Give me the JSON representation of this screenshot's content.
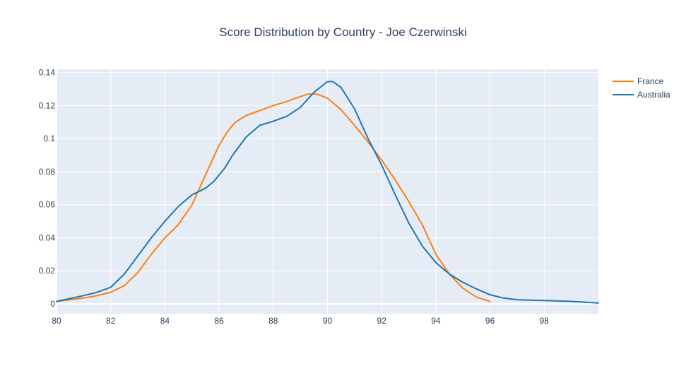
{
  "chart_data": {
    "type": "line",
    "title": "Score Distribution by Country - Joe Czerwinski",
    "xlabel": "",
    "ylabel": "",
    "xlim": [
      80,
      100
    ],
    "ylim": [
      -0.006,
      0.142
    ],
    "x_ticks": [
      80,
      82,
      84,
      86,
      88,
      90,
      92,
      94,
      96,
      98
    ],
    "x_tick_labels": [
      "80",
      "82",
      "84",
      "86",
      "88",
      "90",
      "92",
      "94",
      "96",
      "98"
    ],
    "y_ticks": [
      0,
      0.02,
      0.04,
      0.06,
      0.08,
      0.1,
      0.12,
      0.14
    ],
    "y_tick_labels": [
      "0",
      "0.02",
      "0.04",
      "0.06",
      "0.08",
      "0.1",
      "0.12",
      "0.14"
    ],
    "grid": true,
    "legend_position": "top-right",
    "plot_bgcolor": "#e5ecf6",
    "series": [
      {
        "name": "France",
        "color": "#ff7f0e",
        "x": [
          80,
          81,
          81.5,
          82,
          82.5,
          83,
          83.5,
          84,
          84.5,
          85,
          85.5,
          86,
          86.3,
          86.6,
          87,
          87.5,
          88,
          88.5,
          89,
          89.3,
          89.6,
          90,
          90.5,
          91,
          91.5,
          92,
          92.5,
          93,
          93.5,
          94,
          94.5,
          95,
          95.5,
          96
        ],
        "y": [
          0.0015,
          0.0035,
          0.005,
          0.007,
          0.011,
          0.019,
          0.03,
          0.04,
          0.048,
          0.06,
          0.078,
          0.096,
          0.104,
          0.11,
          0.114,
          0.117,
          0.12,
          0.1225,
          0.1255,
          0.127,
          0.127,
          0.1245,
          0.1175,
          0.108,
          0.098,
          0.087,
          0.075,
          0.062,
          0.048,
          0.03,
          0.018,
          0.0095,
          0.004,
          0.0015
        ]
      },
      {
        "name": "Australia",
        "color": "#1f77b4",
        "x": [
          80,
          81,
          81.5,
          82,
          82.5,
          83,
          83.5,
          84,
          84.5,
          85,
          85.5,
          85.8,
          86.2,
          86.5,
          87,
          87.5,
          88,
          88.5,
          89,
          89.5,
          90,
          90.2,
          90.5,
          91,
          91.5,
          92,
          92.5,
          93,
          93.5,
          94,
          94.5,
          95,
          95.5,
          96,
          96.5,
          97,
          98,
          99,
          100
        ],
        "y": [
          0.0015,
          0.005,
          0.007,
          0.01,
          0.018,
          0.029,
          0.04,
          0.05,
          0.059,
          0.066,
          0.07,
          0.074,
          0.082,
          0.09,
          0.101,
          0.108,
          0.1105,
          0.1135,
          0.119,
          0.128,
          0.1345,
          0.1345,
          0.131,
          0.118,
          0.1,
          0.084,
          0.066,
          0.049,
          0.035,
          0.025,
          0.018,
          0.013,
          0.009,
          0.0055,
          0.0035,
          0.0025,
          0.002,
          0.0015,
          0.0005
        ]
      }
    ]
  }
}
